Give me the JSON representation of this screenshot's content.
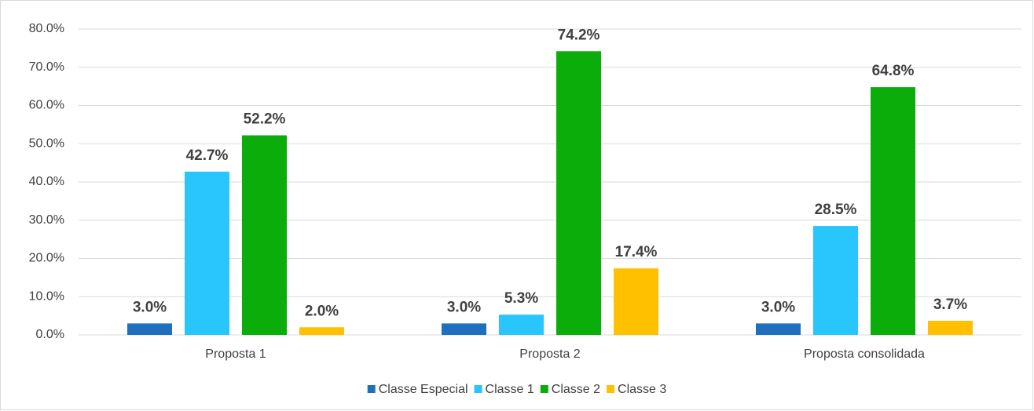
{
  "chart_data": {
    "type": "bar",
    "categories": [
      "Proposta 1",
      "Proposta 2",
      "Proposta consolidada"
    ],
    "series": [
      {
        "name": "Classe Especial",
        "color": "#1f6fbf",
        "values": [
          3.0,
          3.0,
          3.0
        ],
        "value_labels": [
          "3.0%",
          "3.0%",
          "3.0%"
        ]
      },
      {
        "name": "Classe 1",
        "color": "#29c5fd",
        "values": [
          42.7,
          5.3,
          28.5
        ],
        "value_labels": [
          "42.7%",
          "5.3%",
          "28.5%"
        ]
      },
      {
        "name": "Classe 2",
        "color": "#0aad0a",
        "values": [
          52.2,
          74.2,
          64.8
        ],
        "value_labels": [
          "52.2%",
          "74.2%",
          "64.8%"
        ]
      },
      {
        "name": "Classe 3",
        "color": "#ffc000",
        "values": [
          2.0,
          17.4,
          3.7
        ],
        "value_labels": [
          "2.0%",
          "17.4%",
          "3.7%"
        ]
      }
    ],
    "ylim": [
      0,
      80
    ],
    "yticks": [
      {
        "value": 0,
        "label": "0.0%"
      },
      {
        "value": 10,
        "label": "10.0%"
      },
      {
        "value": 20,
        "label": "20.0%"
      },
      {
        "value": 30,
        "label": "30.0%"
      },
      {
        "value": 40,
        "label": "40.0%"
      },
      {
        "value": 50,
        "label": "50.0%"
      },
      {
        "value": 60,
        "label": "60.0%"
      },
      {
        "value": 70,
        "label": "70.0%"
      },
      {
        "value": 80,
        "label": "80.0%"
      }
    ],
    "grid": true,
    "legend": "bottom"
  }
}
